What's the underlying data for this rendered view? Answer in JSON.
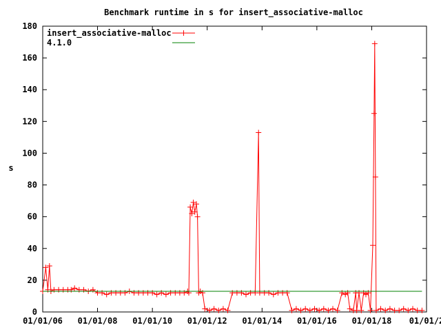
{
  "chart_data": {
    "type": "line",
    "title": "Benchmark runtime in s for insert_associative-malloc",
    "xlabel": "",
    "ylabel": "s",
    "xlim": [
      "2006-01-01",
      "2020-01-01"
    ],
    "ylim": [
      0,
      180
    ],
    "grid": false,
    "legend_position": "top-left",
    "x_tick_labels": [
      "01/01/06",
      "01/01/08",
      "01/01/10",
      "01/01/12",
      "01/01/14",
      "01/01/16",
      "01/01/18",
      "01/01/2"
    ],
    "x_tick_dates": [
      "2006-01-01",
      "2008-01-01",
      "2010-01-01",
      "2012-01-01",
      "2014-01-01",
      "2016-01-01",
      "2018-01-01",
      "2020-01-01"
    ],
    "y_ticks": [
      0,
      20,
      40,
      60,
      80,
      100,
      120,
      140,
      160,
      180
    ],
    "series": [
      {
        "name": "insert_associative-malloc",
        "color": "#ff0000",
        "marker": "plus",
        "points": [
          [
            "2006-01-01",
            13
          ],
          [
            "2006-02-10",
            28
          ],
          [
            "2006-03-10",
            14
          ],
          [
            "2006-04-01",
            29
          ],
          [
            "2006-04-20",
            13
          ],
          [
            "2006-06-01",
            14
          ],
          [
            "2006-08-01",
            14
          ],
          [
            "2006-10-01",
            14
          ],
          [
            "2006-12-01",
            14
          ],
          [
            "2007-01-15",
            14
          ],
          [
            "2007-03-01",
            15
          ],
          [
            "2007-05-01",
            14
          ],
          [
            "2007-07-01",
            14
          ],
          [
            "2007-09-01",
            13
          ],
          [
            "2007-11-01",
            14
          ],
          [
            "2008-01-01",
            12
          ],
          [
            "2008-03-01",
            12
          ],
          [
            "2008-05-01",
            11
          ],
          [
            "2008-07-01",
            12
          ],
          [
            "2008-09-01",
            12
          ],
          [
            "2008-11-01",
            12
          ],
          [
            "2009-01-01",
            12
          ],
          [
            "2009-03-01",
            13
          ],
          [
            "2009-05-01",
            12
          ],
          [
            "2009-07-01",
            12
          ],
          [
            "2009-09-01",
            12
          ],
          [
            "2009-11-01",
            12
          ],
          [
            "2010-01-01",
            12
          ],
          [
            "2010-03-01",
            11
          ],
          [
            "2010-05-01",
            12
          ],
          [
            "2010-07-01",
            11
          ],
          [
            "2010-09-01",
            12
          ],
          [
            "2010-11-01",
            12
          ],
          [
            "2011-01-01",
            12
          ],
          [
            "2011-03-01",
            12
          ],
          [
            "2011-04-15",
            13
          ],
          [
            "2011-05-01",
            12
          ],
          [
            "2011-05-20",
            66
          ],
          [
            "2011-06-10",
            62
          ],
          [
            "2011-07-01",
            69
          ],
          [
            "2011-07-20",
            63
          ],
          [
            "2011-08-10",
            68
          ],
          [
            "2011-08-25",
            60
          ],
          [
            "2011-09-10",
            12
          ],
          [
            "2011-10-01",
            13
          ],
          [
            "2011-11-01",
            12
          ],
          [
            "2011-12-01",
            2
          ],
          [
            "2012-02-01",
            1
          ],
          [
            "2012-04-01",
            2
          ],
          [
            "2012-06-01",
            1
          ],
          [
            "2012-08-01",
            2
          ],
          [
            "2012-10-01",
            1
          ],
          [
            "2012-12-01",
            12
          ],
          [
            "2013-02-01",
            12
          ],
          [
            "2013-04-01",
            12
          ],
          [
            "2013-06-01",
            11
          ],
          [
            "2013-08-01",
            12
          ],
          [
            "2013-10-01",
            12
          ],
          [
            "2013-11-15",
            113
          ],
          [
            "2013-12-01",
            12
          ],
          [
            "2014-02-01",
            12
          ],
          [
            "2014-04-01",
            12
          ],
          [
            "2014-06-01",
            11
          ],
          [
            "2014-08-01",
            12
          ],
          [
            "2014-10-01",
            12
          ],
          [
            "2014-12-01",
            12
          ],
          [
            "2015-02-01",
            1
          ],
          [
            "2015-04-01",
            2
          ],
          [
            "2015-06-01",
            1
          ],
          [
            "2015-08-01",
            2
          ],
          [
            "2015-10-01",
            1
          ],
          [
            "2015-12-01",
            2
          ],
          [
            "2016-02-01",
            1
          ],
          [
            "2016-04-01",
            2
          ],
          [
            "2016-06-01",
            1
          ],
          [
            "2016-08-01",
            2
          ],
          [
            "2016-10-01",
            1
          ],
          [
            "2016-12-01",
            12
          ],
          [
            "2017-01-15",
            11
          ],
          [
            "2017-02-15",
            12
          ],
          [
            "2017-03-15",
            2
          ],
          [
            "2017-05-01",
            1
          ],
          [
            "2017-06-01",
            12
          ],
          [
            "2017-06-15",
            1
          ],
          [
            "2017-07-15",
            12
          ],
          [
            "2017-08-15",
            1
          ],
          [
            "2017-09-15",
            12
          ],
          [
            "2017-10-15",
            11
          ],
          [
            "2017-11-15",
            12
          ],
          [
            "2017-12-15",
            1
          ],
          [
            "2018-01-15",
            42
          ],
          [
            "2018-02-01",
            125
          ],
          [
            "2018-02-10",
            169
          ],
          [
            "2018-02-20",
            85
          ],
          [
            "2018-03-01",
            1
          ],
          [
            "2018-05-01",
            2
          ],
          [
            "2018-07-01",
            1
          ],
          [
            "2018-09-01",
            2
          ],
          [
            "2018-11-01",
            1
          ],
          [
            "2019-01-01",
            1
          ],
          [
            "2019-03-01",
            2
          ],
          [
            "2019-05-01",
            1
          ],
          [
            "2019-07-01",
            2
          ],
          [
            "2019-09-01",
            1
          ],
          [
            "2019-11-01",
            1
          ]
        ]
      },
      {
        "name": "4.1.0",
        "color": "#008000",
        "marker": "none",
        "points": [
          [
            "2006-01-01",
            13
          ],
          [
            "2019-11-01",
            13
          ]
        ]
      }
    ]
  }
}
